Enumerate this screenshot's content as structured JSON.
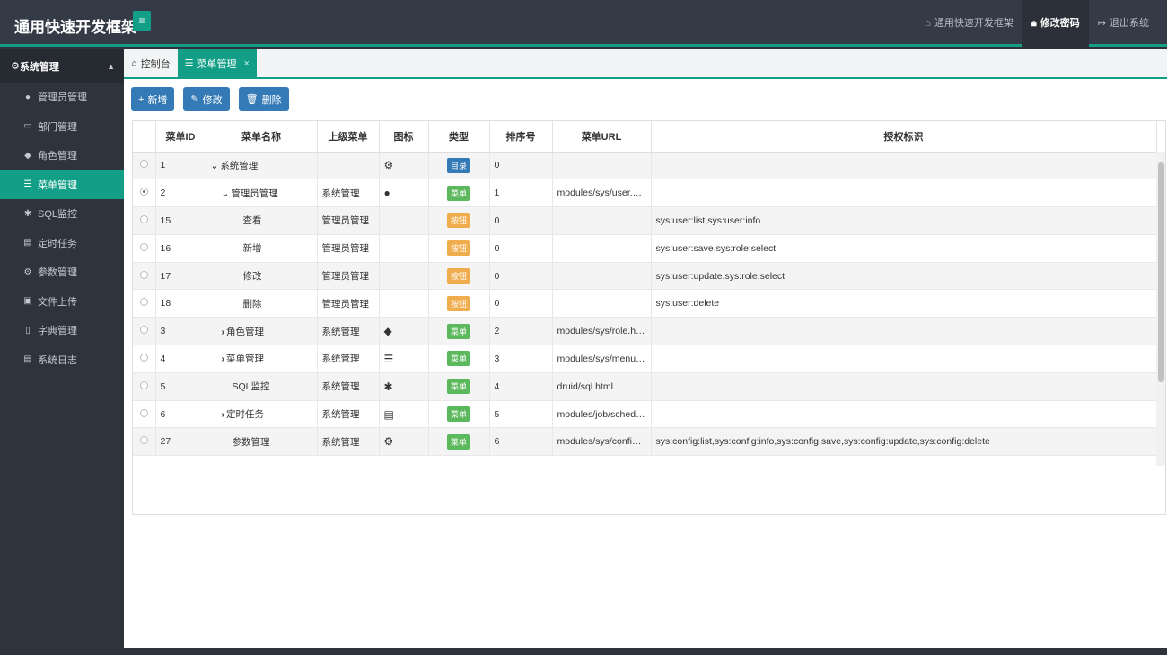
{
  "app": {
    "brand": "通用快速开发框架",
    "top_links": [
      {
        "label": "通用快速开发框架",
        "icon": "home-icon"
      },
      {
        "label": "修改密码",
        "icon": "lock-icon"
      },
      {
        "label": "退出系统",
        "icon": "logout-icon"
      }
    ]
  },
  "sidebar": {
    "header": "系统管理",
    "items": [
      {
        "label": "管理员管理",
        "icon": "user-icon"
      },
      {
        "label": "部门管理",
        "icon": "file-icon"
      },
      {
        "label": "角色管理",
        "icon": "user-secret-icon"
      },
      {
        "label": "菜单管理",
        "icon": "list-icon"
      },
      {
        "label": "SQL监控",
        "icon": "bug-icon"
      },
      {
        "label": "定时任务",
        "icon": "tasks-icon"
      },
      {
        "label": "参数管理",
        "icon": "gear-icon"
      },
      {
        "label": "文件上传",
        "icon": "file-image-icon"
      },
      {
        "label": "字典管理",
        "icon": "bookmark-icon"
      },
      {
        "label": "系统日志",
        "icon": "file-text-icon"
      }
    ]
  },
  "tabs": [
    {
      "label": "控制台"
    },
    {
      "label": "菜单管理"
    }
  ],
  "toolbar": {
    "add": "新增",
    "edit": "修改",
    "delete": "删除"
  },
  "table": {
    "headers": [
      "菜单ID",
      "菜单名称",
      "上级菜单",
      "图标",
      "类型",
      "排序号",
      "菜单URL",
      "授权标识"
    ],
    "rows": [
      {
        "id": "1",
        "name": "系统管理",
        "parent": "",
        "icon": "gear-icon",
        "type": "目录",
        "order": "0",
        "url": "",
        "perms": ""
      },
      {
        "id": "2",
        "name": "管理员管理",
        "parent": "系统管理",
        "icon": "user-icon",
        "type": "菜单",
        "order": "1",
        "url": "modules/sys/user.html",
        "perms": ""
      },
      {
        "id": "15",
        "name": "查看",
        "parent": "管理员管理",
        "icon": "",
        "type": "按钮",
        "order": "0",
        "url": "",
        "perms": "sys:user:list,sys:user:info"
      },
      {
        "id": "16",
        "name": "新增",
        "parent": "管理员管理",
        "icon": "",
        "type": "按钮",
        "order": "0",
        "url": "",
        "perms": "sys:user:save,sys:role:select"
      },
      {
        "id": "17",
        "name": "修改",
        "parent": "管理员管理",
        "icon": "",
        "type": "按钮",
        "order": "0",
        "url": "",
        "perms": "sys:user:update,sys:role:select"
      },
      {
        "id": "18",
        "name": "删除",
        "parent": "管理员管理",
        "icon": "",
        "type": "按钮",
        "order": "0",
        "url": "",
        "perms": "sys:user:delete"
      },
      {
        "id": "3",
        "name": "角色管理",
        "parent": "系统管理",
        "icon": "user-secret-icon",
        "type": "菜单",
        "order": "2",
        "url": "modules/sys/role.html",
        "perms": ""
      },
      {
        "id": "4",
        "name": "菜单管理",
        "parent": "系统管理",
        "icon": "list-icon",
        "type": "菜单",
        "order": "3",
        "url": "modules/sys/menu.h...",
        "perms": ""
      },
      {
        "id": "5",
        "name": "SQL监控",
        "parent": "系统管理",
        "icon": "bug-icon",
        "type": "菜单",
        "order": "4",
        "url": "druid/sql.html",
        "perms": ""
      },
      {
        "id": "6",
        "name": "定时任务",
        "parent": "系统管理",
        "icon": "tasks-icon",
        "type": "菜单",
        "order": "5",
        "url": "modules/job/schedul...",
        "perms": ""
      },
      {
        "id": "27",
        "name": "参数管理",
        "parent": "系统管理",
        "icon": "gear-icon",
        "type": "菜单",
        "order": "6",
        "url": "modules/sys/config....",
        "perms": "sys:config:list,sys:config:info,sys:config:save,sys:config:update,sys:config:delete"
      }
    ]
  }
}
